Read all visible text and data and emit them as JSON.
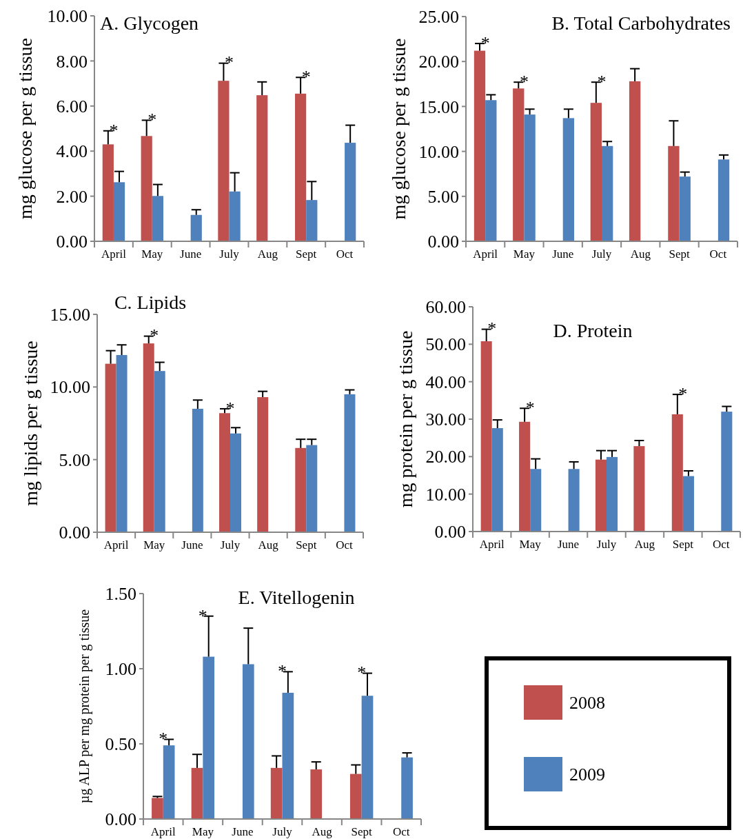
{
  "chart_data": [
    {
      "type": "bar",
      "title": "A. Glycogen",
      "ylabel": "mg glucose per g tissue",
      "categories": [
        "April",
        "May",
        "June",
        "July",
        "Aug",
        "Sept",
        "Oct"
      ],
      "ylim": [
        0,
        10
      ],
      "yticks": [
        {
          "value": 0,
          "label": "0.00"
        },
        {
          "value": 2,
          "label": "2.00"
        },
        {
          "value": 4,
          "label": "4.00"
        },
        {
          "value": 6,
          "label": "6.00"
        },
        {
          "value": 8,
          "label": "8.00"
        },
        {
          "value": 10,
          "label": "10.00"
        }
      ],
      "series": [
        {
          "color": "#c0504d",
          "values": [
            4.3,
            4.67,
            null,
            7.12,
            6.48,
            6.55,
            null
          ],
          "errors": [
            [
              4.3,
              4.9
            ],
            [
              4.67,
              5.37
            ],
            null,
            [
              7.12,
              7.9
            ],
            [
              6.48,
              7.07
            ],
            [
              6.55,
              7.27
            ],
            null
          ]
        },
        {
          "color": "#4f81bd",
          "values": [
            2.62,
            2.01,
            1.17,
            2.21,
            null,
            1.83,
            4.37
          ],
          "errors": [
            [
              2.62,
              3.1
            ],
            [
              2.01,
              2.52
            ],
            [
              1.17,
              1.4
            ],
            [
              2.21,
              3.04
            ],
            null,
            [
              1.83,
              2.65
            ],
            [
              4.37,
              5.15
            ]
          ]
        }
      ],
      "annotations": [
        {
          "text": "*",
          "x": "April",
          "y": 4.3
        },
        {
          "text": "*",
          "x": "May",
          "y": 4.67
        },
        {
          "text": "*",
          "x": "July",
          "y": 7.12
        },
        {
          "text": "*",
          "x": "Sept",
          "y": 6.55
        }
      ]
    },
    {
      "type": "bar",
      "title": "B. Total Carbohydrates",
      "ylabel": "mg glucose per g tissue",
      "categories": [
        "April",
        "May",
        "June",
        "July",
        "Aug",
        "Sept",
        "Oct"
      ],
      "ylim": [
        0,
        25
      ],
      "yticks": [
        {
          "value": 0,
          "label": "0.00"
        },
        {
          "value": 5,
          "label": "5.00"
        },
        {
          "value": 10,
          "label": "10.00"
        },
        {
          "value": 15,
          "label": "15.00"
        },
        {
          "value": 20,
          "label": "20.00"
        },
        {
          "value": 25,
          "label": "25.00"
        }
      ],
      "series": [
        {
          "color": "#c0504d",
          "values": [
            21.2,
            17.0,
            null,
            15.4,
            17.8,
            10.6,
            null
          ],
          "errors": [
            [
              21.2,
              22.0
            ],
            [
              17.0,
              17.7
            ],
            null,
            [
              15.4,
              17.7
            ],
            [
              17.8,
              19.2
            ],
            [
              10.6,
              13.4
            ],
            null
          ]
        },
        {
          "color": "#4f81bd",
          "values": [
            15.7,
            14.1,
            13.7,
            10.6,
            null,
            7.2,
            9.1
          ],
          "errors": [
            [
              15.7,
              16.3
            ],
            [
              14.1,
              14.7
            ],
            [
              13.7,
              14.7
            ],
            [
              10.6,
              11.1
            ],
            null,
            [
              7.2,
              7.7
            ],
            [
              9.1,
              9.6
            ]
          ]
        }
      ],
      "annotations": [
        {
          "text": "*",
          "x": "April",
          "y": 21.2
        },
        {
          "text": "*",
          "x": "May",
          "y": 17.0
        },
        {
          "text": "*",
          "x": "July",
          "y": 15.4
        }
      ]
    },
    {
      "type": "bar",
      "title": "C. Lipids",
      "ylabel": "mg lipids per g tissue",
      "categories": [
        "April",
        "May",
        "June",
        "July",
        "Aug",
        "Sept",
        "Oct"
      ],
      "ylim": [
        0,
        15
      ],
      "yticks": [
        {
          "value": 0,
          "label": "0.00"
        },
        {
          "value": 5,
          "label": "5.00"
        },
        {
          "value": 10,
          "label": "10.00"
        },
        {
          "value": 15,
          "label": "15.00"
        }
      ],
      "series": [
        {
          "color": "#c0504d",
          "values": [
            11.6,
            13.0,
            null,
            8.2,
            9.3,
            5.8,
            null
          ],
          "errors": [
            [
              11.6,
              12.5
            ],
            [
              13.0,
              13.5
            ],
            null,
            [
              8.2,
              8.5
            ],
            [
              9.3,
              9.7
            ],
            [
              5.8,
              6.4
            ],
            null
          ]
        },
        {
          "color": "#4f81bd",
          "values": [
            12.2,
            11.1,
            8.5,
            6.8,
            null,
            6.0,
            9.5
          ],
          "errors": [
            [
              12.2,
              12.9
            ],
            [
              11.1,
              11.7
            ],
            [
              8.5,
              9.1
            ],
            [
              6.8,
              7.2
            ],
            null,
            [
              6.0,
              6.4
            ],
            [
              9.5,
              9.8
            ]
          ]
        }
      ],
      "annotations": [
        {
          "text": "*",
          "x": "May",
          "y": 13.0
        },
        {
          "text": "*",
          "x": "July",
          "y": 8.2
        }
      ]
    },
    {
      "type": "bar",
      "title": "D. Protein",
      "ylabel": "mg protein per g tissue",
      "categories": [
        "April",
        "May",
        "June",
        "July",
        "Aug",
        "Sept",
        "Oct"
      ],
      "ylim": [
        0,
        60
      ],
      "yticks": [
        {
          "value": 0,
          "label": "0.00"
        },
        {
          "value": 10,
          "label": "10.00"
        },
        {
          "value": 20,
          "label": "20.00"
        },
        {
          "value": 30,
          "label": "30.00"
        },
        {
          "value": 40,
          "label": "40.00"
        },
        {
          "value": 50,
          "label": "50.00"
        },
        {
          "value": 60,
          "label": "60.00"
        }
      ],
      "series": [
        {
          "color": "#c0504d",
          "values": [
            50.8,
            29.3,
            null,
            19.2,
            22.8,
            31.3,
            null
          ],
          "errors": [
            [
              50.8,
              54.0
            ],
            [
              29.3,
              32.9
            ],
            null,
            [
              19.2,
              21.6
            ],
            [
              22.8,
              24.3
            ],
            [
              31.3,
              36.6
            ],
            null
          ]
        },
        {
          "color": "#4f81bd",
          "values": [
            27.6,
            16.7,
            16.7,
            19.9,
            null,
            14.8,
            32.0
          ],
          "errors": [
            [
              27.6,
              29.8
            ],
            [
              16.7,
              19.4
            ],
            [
              16.7,
              18.6
            ],
            [
              19.9,
              21.6
            ],
            null,
            [
              14.8,
              16.2
            ],
            [
              32.0,
              33.4
            ]
          ]
        }
      ],
      "annotations": [
        {
          "text": "*",
          "x": "April",
          "y": 50.8
        },
        {
          "text": "*",
          "x": "May",
          "y": 29.3
        },
        {
          "text": "*",
          "x": "Sept",
          "y": 31.3
        }
      ]
    },
    {
      "type": "bar",
      "title": "E. Vitellogenin",
      "ylabel": "µg ALP per mg protein per g tissue",
      "categories": [
        "April",
        "May",
        "June",
        "July",
        "Aug",
        "Sept",
        "Oct"
      ],
      "ylim": [
        0,
        1.5
      ],
      "yticks": [
        {
          "value": 0,
          "label": "0.00"
        },
        {
          "value": 0.5,
          "label": "0.50"
        },
        {
          "value": 1,
          "label": "1.00"
        },
        {
          "value": 1.5,
          "label": "1.50"
        }
      ],
      "legend": "right",
      "series": [
        {
          "name": "2008",
          "color": "#c0504d",
          "values": [
            0.14,
            0.34,
            null,
            0.34,
            0.33,
            0.3,
            null
          ],
          "errors": [
            [
              0.14,
              0.15
            ],
            [
              0.34,
              0.43
            ],
            null,
            [
              0.34,
              0.42
            ],
            [
              0.33,
              0.38
            ],
            [
              0.3,
              0.36
            ],
            null
          ]
        },
        {
          "name": "2009",
          "color": "#4f81bd",
          "values": [
            0.49,
            1.08,
            1.03,
            0.84,
            null,
            0.82,
            0.41
          ],
          "errors": [
            [
              0.49,
              0.53
            ],
            [
              1.08,
              1.35
            ],
            [
              1.03,
              1.27
            ],
            [
              0.84,
              0.98
            ],
            null,
            [
              0.82,
              0.97
            ],
            [
              0.41,
              0.44
            ]
          ]
        }
      ],
      "annotations": [
        {
          "text": "*",
          "x": "April",
          "y": 0.49
        },
        {
          "text": "*",
          "x": "May",
          "y": 1.08
        },
        {
          "text": "*",
          "x": "July",
          "y": 0.84
        },
        {
          "text": "*",
          "x": "Sept",
          "y": 0.82
        }
      ]
    }
  ]
}
